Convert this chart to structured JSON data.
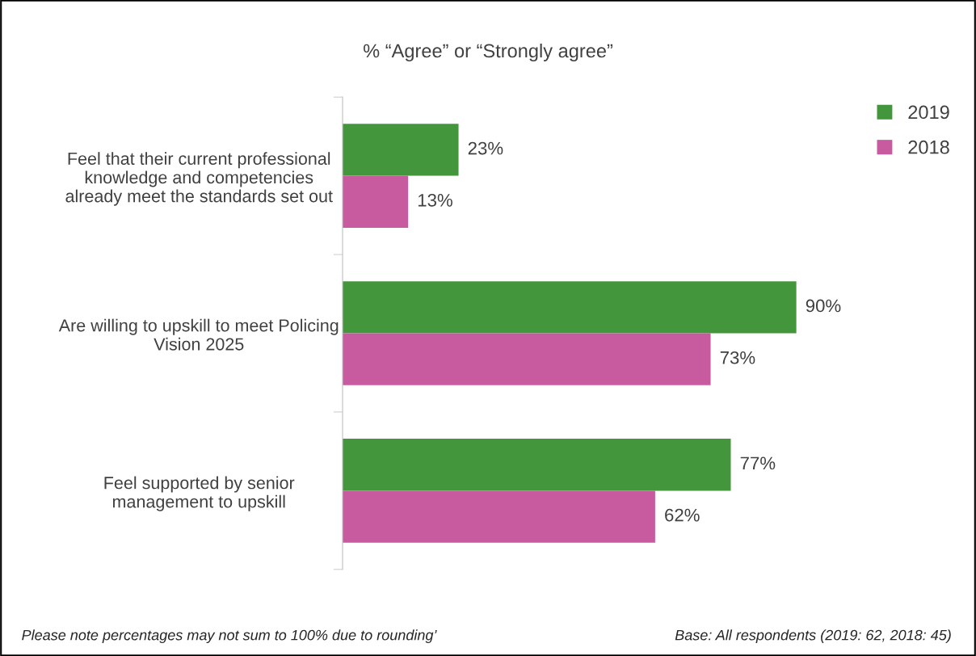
{
  "chart_data": {
    "type": "bar",
    "orientation": "horizontal",
    "title": "% “Agree” or “Strongly agree”",
    "categories": [
      "Feel that their current professional\nknowledge and competencies\nalready meet the standards set out",
      "Are willing to upskill to meet Policing\nVision 2025",
      "Feel supported by senior\nmanagement to upskill"
    ],
    "series": [
      {
        "name": "2019",
        "color": "#43963b",
        "values": [
          23,
          90,
          77
        ],
        "value_labels": [
          "23%",
          "90%",
          "77%"
        ]
      },
      {
        "name": "2018",
        "color": "#c85a9f",
        "values": [
          13,
          73,
          62
        ],
        "value_labels": [
          "13%",
          "73%",
          "62%"
        ]
      }
    ],
    "legend": "top right",
    "grid": false,
    "tick_labels": "y",
    "annotations": [
      "Please note percentages may not sum to 100% due to rounding’",
      "Base: All respondents (2019: 62, 2018: 45)"
    ]
  }
}
